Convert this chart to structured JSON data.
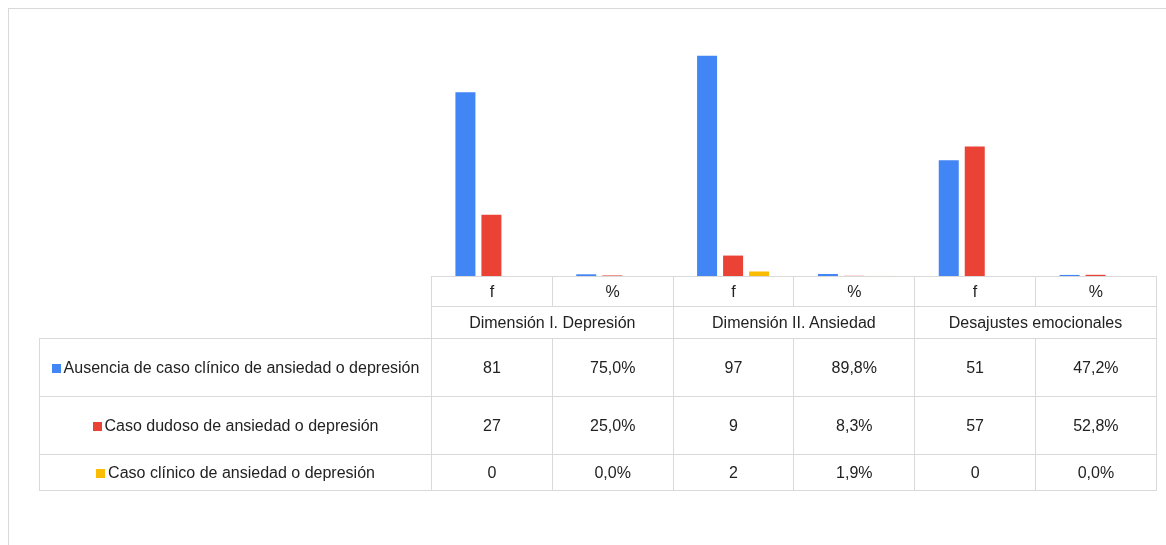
{
  "chart_data": {
    "type": "bar",
    "categories": [
      "f",
      "%",
      "f",
      "%",
      "f",
      "%"
    ],
    "annotations": [
      "Dimensión I. Depresión",
      "Dimensión II. Ansiedad",
      "Desajustes emocionales"
    ],
    "series": [
      {
        "name": "Ausencia de caso clínico de ansiedad o depresión",
        "color": "#4285f4",
        "values": [
          81,
          0.75,
          97,
          0.898,
          51,
          0.472
        ],
        "value_labels": [
          "81",
          "75,0%",
          "97",
          "89,8%",
          "51",
          "47,2%"
        ]
      },
      {
        "name": "Caso dudoso de ansiedad o depresión",
        "color": "#ea4335",
        "values": [
          27,
          0.25,
          9,
          0.083,
          57,
          0.528
        ],
        "value_labels": [
          "27",
          "25,0%",
          "9",
          "8,3%",
          "57",
          "52,8%"
        ]
      },
      {
        "name": "Caso clínico de ansiedad o depresión",
        "color": "#fbbc04",
        "values": [
          0,
          0,
          2,
          0.019,
          0,
          0
        ],
        "value_labels": [
          "0",
          "0,0%",
          "2",
          "1,9%",
          "0",
          "0,0%"
        ]
      }
    ],
    "legend": "bottom left"
  }
}
